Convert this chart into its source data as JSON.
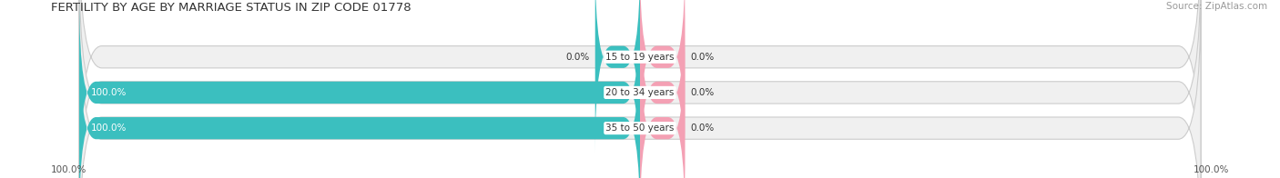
{
  "title": "FERTILITY BY AGE BY MARRIAGE STATUS IN ZIP CODE 01778",
  "source": "Source: ZipAtlas.com",
  "categories": [
    "15 to 19 years",
    "20 to 34 years",
    "35 to 50 years"
  ],
  "married_values": [
    0.0,
    100.0,
    100.0
  ],
  "unmarried_values": [
    0.0,
    0.0,
    0.0
  ],
  "married_color": "#3BBFBF",
  "unmarried_color": "#F4A0B4",
  "bar_bg_color": "#F0F0F0",
  "bar_border_color": "#CCCCCC",
  "title_fontsize": 9.5,
  "source_fontsize": 7.5,
  "label_fontsize": 7.5,
  "category_fontsize": 7.5,
  "legend_fontsize": 8.5,
  "axis_label_left": "100.0%",
  "axis_label_right": "100.0%",
  "background_color": "#FFFFFF",
  "bar_height": 0.62,
  "married_label_color": "#FFFFFF",
  "other_label_color": "#333333",
  "small_bar_width": 8
}
